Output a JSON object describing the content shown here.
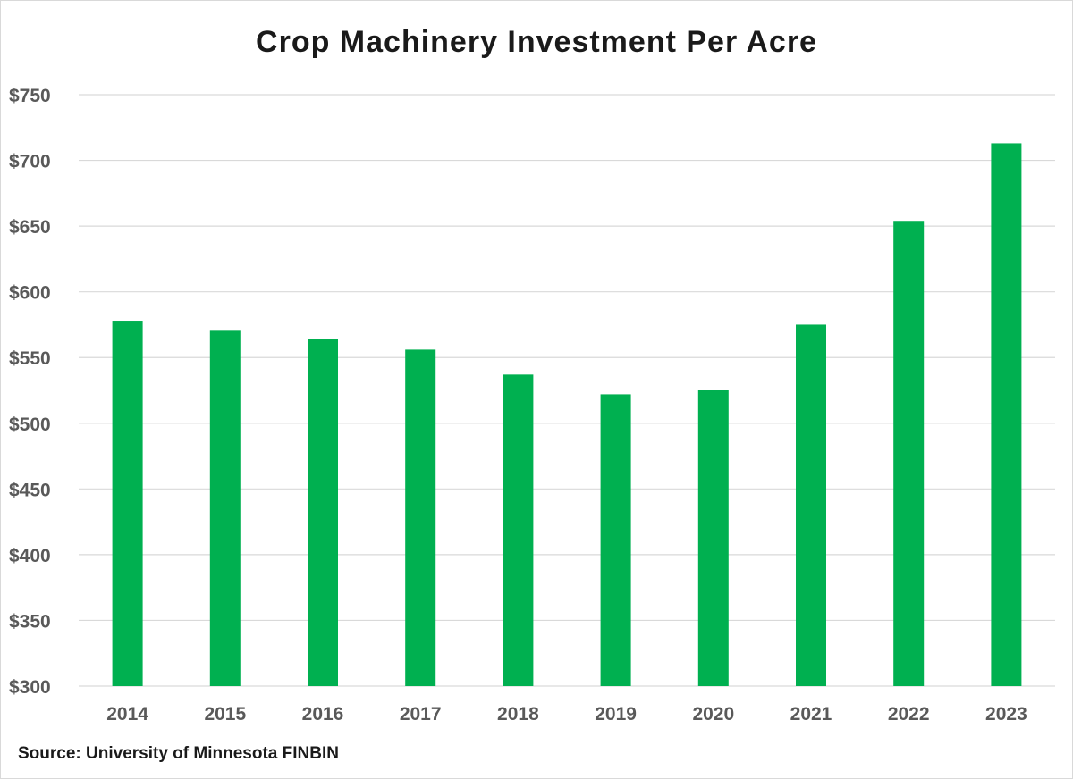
{
  "chart_data": {
    "type": "bar",
    "title": "Crop Machinery Investment Per Acre",
    "categories": [
      "2014",
      "2015",
      "2016",
      "2017",
      "2018",
      "2019",
      "2020",
      "2021",
      "2022",
      "2023"
    ],
    "values": [
      578,
      571,
      564,
      556,
      537,
      522,
      525,
      575,
      654,
      713
    ],
    "xlabel": "",
    "ylabel": "",
    "ylim": [
      300,
      750
    ],
    "yticks": [
      300,
      350,
      400,
      450,
      500,
      550,
      600,
      650,
      700,
      750
    ],
    "ytick_labels": [
      "$300",
      "$350",
      "$400",
      "$450",
      "$500",
      "$550",
      "$600",
      "$650",
      "$700",
      "$750"
    ],
    "grid": true,
    "legend": "none",
    "bar_color": "#00b050",
    "grid_color": "#d9d9d9"
  },
  "source": "Source: University of Minnesota FINBIN"
}
